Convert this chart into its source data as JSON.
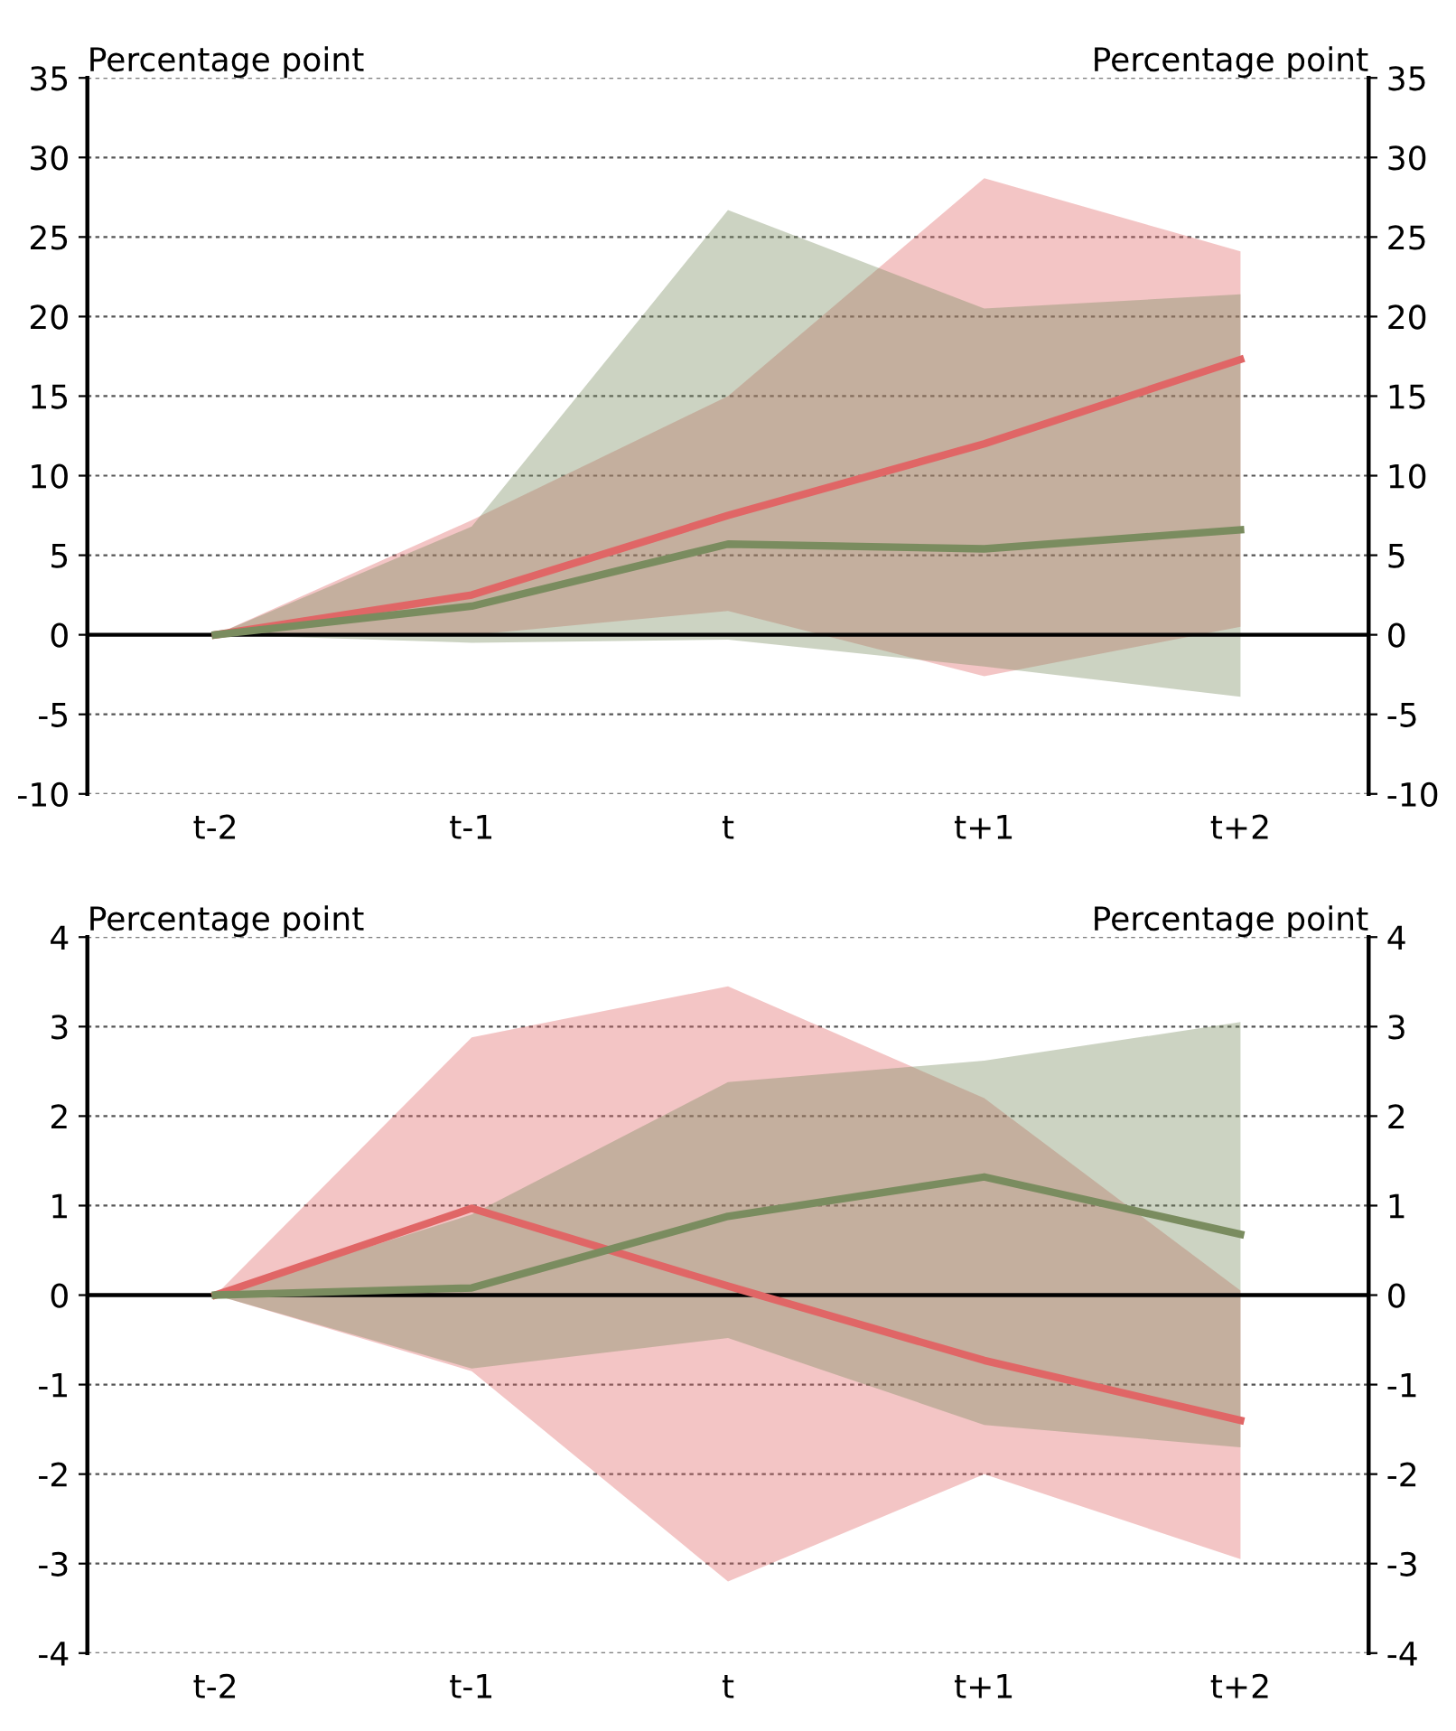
{
  "chart_data": [
    {
      "type": "line",
      "categories": [
        "t-2",
        "t-1",
        "t",
        "t+1",
        "t+2"
      ],
      "ylabel": "Percentage point",
      "y2label": "Percentage point",
      "ylim": [
        -10,
        35
      ],
      "yticks": [
        -10,
        -5,
        0,
        5,
        10,
        15,
        20,
        25,
        30,
        35
      ],
      "y2lim": [
        -10,
        35
      ],
      "y2ticks": [
        -10,
        -5,
        0,
        5,
        10,
        15,
        20,
        25,
        30,
        35
      ],
      "grid": "y",
      "legend": false,
      "marker": "none",
      "line_style": "solid",
      "series": [
        {
          "color": "#e06666",
          "values": [
            0,
            2.5,
            7.5,
            12,
            17.3
          ],
          "lower": [
            0,
            0,
            1.5,
            -2.6,
            0.5
          ],
          "upper": [
            0,
            7.2,
            15,
            28.7,
            24.1
          ]
        },
        {
          "color": "#7a8c5f",
          "values": [
            0,
            1.8,
            5.7,
            5.4,
            6.6
          ],
          "lower": [
            0,
            -0.5,
            -0.3,
            -2.0,
            -3.9
          ],
          "upper": [
            0,
            6.8,
            26.7,
            20.5,
            21.4
          ]
        }
      ]
    },
    {
      "type": "line",
      "categories": [
        "t-2",
        "t-1",
        "t",
        "t+1",
        "t+2"
      ],
      "ylabel": "Percentage point",
      "y2label": "Percentage point",
      "ylim": [
        -4,
        4
      ],
      "yticks": [
        -4,
        -3,
        -2,
        -1,
        0,
        1,
        2,
        3,
        4
      ],
      "y2lim": [
        -4,
        4
      ],
      "y2ticks": [
        -4,
        -3,
        -2,
        -1,
        0,
        1,
        2,
        3,
        4
      ],
      "grid": "y",
      "legend": false,
      "marker": "none",
      "line_style": "solid",
      "series": [
        {
          "color": "#e06666",
          "values": [
            0,
            0.97,
            0.1,
            -0.73,
            -1.4
          ],
          "lower": [
            0,
            -0.85,
            -3.2,
            -2.0,
            -2.95
          ],
          "upper": [
            0,
            2.88,
            3.45,
            2.2,
            0.05
          ]
        },
        {
          "color": "#7a8c5f",
          "values": [
            0,
            0.08,
            0.88,
            1.32,
            0.68
          ],
          "lower": [
            0,
            -0.82,
            -0.48,
            -1.45,
            -1.7
          ],
          "upper": [
            0,
            0.9,
            2.38,
            2.62,
            3.05
          ]
        }
      ]
    }
  ]
}
